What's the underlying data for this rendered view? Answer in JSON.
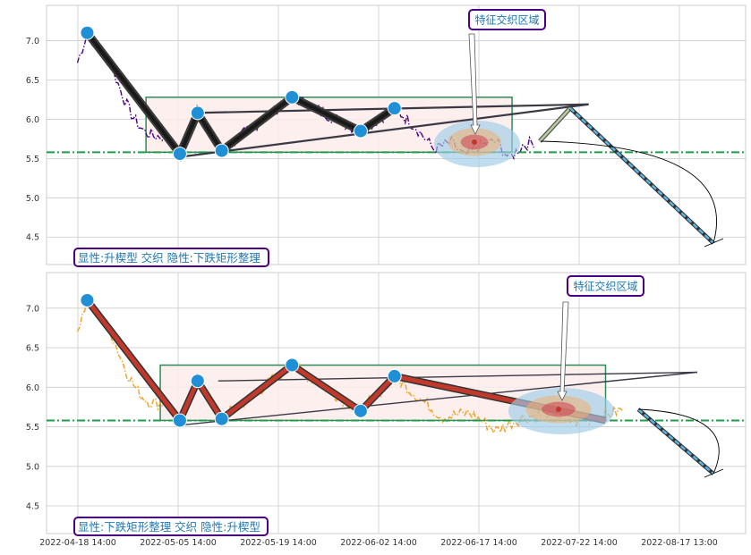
{
  "x_tick_labels": [
    "2022-04-18 14:00",
    "2022-05-05 14:00",
    "2022-05-19 14:00",
    "2022-06-02 14:00",
    "2022-06-17 14:00",
    "2022-07-22 14:00",
    "2022-08-17 13:00"
  ],
  "colors": {
    "grid": "#cccccc",
    "frame": "#cccccc",
    "box": "#2e8b57",
    "box_fill": "#fdecea",
    "support_line": "#1e9e4a",
    "label_border": "#4b0082",
    "label_text": "#1f77b4",
    "point": "#1f8fd6",
    "trend": "#3a3a46",
    "cone": "#add8e6"
  },
  "chart_data": [
    {
      "type": "line",
      "y_ticks": [
        4.5,
        5.0,
        5.5,
        6.0,
        6.5,
        7.0
      ],
      "ylim": [
        4.15,
        7.45
      ],
      "horizontal_line": 5.58,
      "price_color": "#4b0082",
      "price_style": "dash-dot",
      "zigzag_color": "#1a1a1a",
      "zigzag_outline": "#3c3c3c",
      "pivots": [
        [
          1.1,
          7.1
        ],
        [
          11.5,
          5.56
        ],
        [
          13.5,
          6.08
        ],
        [
          16.2,
          5.6
        ],
        [
          24.1,
          6.28
        ],
        [
          31.8,
          5.85
        ],
        [
          35.6,
          6.14
        ]
      ],
      "feature_area_label": "特征交织区域",
      "pattern_label": "显性:升楔型 交织 隐性:下跌矩形整理"
    },
    {
      "type": "line",
      "y_ticks": [
        4.5,
        5.0,
        5.5,
        6.0,
        6.5,
        7.0
      ],
      "ylim": [
        4.15,
        7.45
      ],
      "horizontal_line": 5.58,
      "price_color": "#f0a020",
      "price_style": "dash-dot",
      "zigzag_color": "#c0392b",
      "zigzag_outline": "#333333",
      "pivots": [
        [
          1.1,
          7.1
        ],
        [
          11.5,
          5.58
        ],
        [
          13.5,
          6.08
        ],
        [
          16.2,
          5.6
        ],
        [
          24.1,
          6.28
        ],
        [
          31.8,
          5.7
        ],
        [
          35.6,
          6.14
        ]
      ],
      "feature_area_label": "特征交织区域",
      "pattern_label": "显性:下跌矩形整理 交织 隐性:升楔型"
    }
  ]
}
